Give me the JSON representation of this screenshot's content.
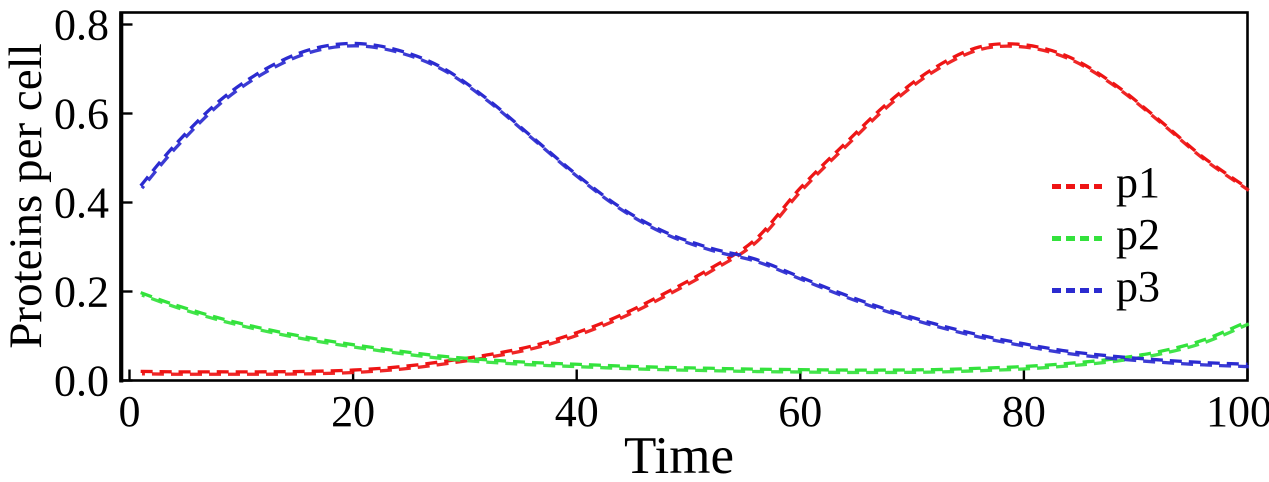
{
  "chart_data": {
    "type": "line",
    "title": "",
    "xlabel": "Time",
    "ylabel": "Proteins per cell",
    "xlim": [
      0,
      100
    ],
    "ylim": [
      0,
      0.8
    ],
    "xticks": [
      0,
      20,
      40,
      60,
      80,
      100
    ],
    "yticks": [
      0.0,
      0.2,
      0.4,
      0.6,
      0.8
    ],
    "grid": false,
    "frame": true,
    "line_style": "dashed",
    "legend_position": "right-inside",
    "x": [
      1,
      4,
      8,
      12,
      16,
      20,
      24,
      28,
      32,
      36,
      40,
      44,
      48,
      52,
      56,
      60,
      64,
      68,
      72,
      76,
      80,
      84,
      88,
      92,
      96,
      100
    ],
    "series": [
      {
        "name": "p1",
        "color": "#ee1414",
        "values": [
          0.018,
          0.017,
          0.017,
          0.017,
          0.018,
          0.021,
          0.028,
          0.04,
          0.055,
          0.075,
          0.105,
          0.145,
          0.195,
          0.25,
          0.315,
          0.43,
          0.53,
          0.625,
          0.7,
          0.747,
          0.752,
          0.725,
          0.665,
          0.585,
          0.5,
          0.43
        ]
      },
      {
        "name": "p2",
        "color": "#33e23c",
        "values": [
          0.195,
          0.168,
          0.138,
          0.114,
          0.094,
          0.078,
          0.064,
          0.052,
          0.044,
          0.038,
          0.034,
          0.03,
          0.027,
          0.025,
          0.023,
          0.022,
          0.021,
          0.021,
          0.022,
          0.025,
          0.029,
          0.036,
          0.046,
          0.062,
          0.088,
          0.13
        ]
      },
      {
        "name": "p3",
        "color": "#2b2bd0",
        "values": [
          0.435,
          0.525,
          0.625,
          0.695,
          0.74,
          0.755,
          0.74,
          0.7,
          0.63,
          0.545,
          0.46,
          0.385,
          0.33,
          0.295,
          0.27,
          0.23,
          0.19,
          0.155,
          0.125,
          0.1,
          0.08,
          0.063,
          0.052,
          0.044,
          0.038,
          0.034
        ]
      }
    ]
  }
}
